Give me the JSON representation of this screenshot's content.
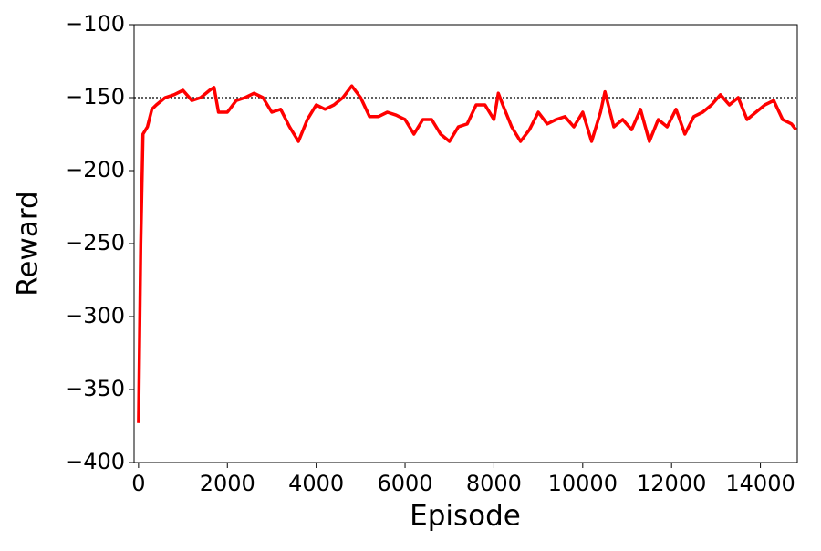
{
  "chart_data": {
    "type": "line",
    "x_label": "Episode",
    "y_label": "Reward",
    "x": [
      0,
      50,
      100,
      200,
      300,
      400,
      600,
      800,
      1000,
      1200,
      1400,
      1600,
      1700,
      1800,
      2000,
      2200,
      2400,
      2600,
      2800,
      3000,
      3200,
      3400,
      3600,
      3800,
      4000,
      4200,
      4400,
      4600,
      4800,
      5000,
      5200,
      5400,
      5600,
      5800,
      6000,
      6200,
      6400,
      6600,
      6800,
      7000,
      7200,
      7400,
      7600,
      7800,
      8000,
      8100,
      8200,
      8400,
      8600,
      8800,
      9000,
      9200,
      9400,
      9600,
      9800,
      10000,
      10200,
      10400,
      10500,
      10700,
      10900,
      11100,
      11300,
      11500,
      11700,
      11900,
      12100,
      12300,
      12500,
      12700,
      12900,
      13100,
      13300,
      13500,
      13700,
      13900,
      14100,
      14300,
      14500,
      14700,
      14800
    ],
    "series": [
      {
        "name": "reward",
        "color": "#ff0000",
        "values": [
          -373,
          -250,
          -175,
          -170,
          -158,
          -155,
          -150,
          -148,
          -145,
          -152,
          -150,
          -145,
          -143,
          -160,
          -160,
          -152,
          -150,
          -147,
          -150,
          -160,
          -158,
          -170,
          -180,
          -165,
          -155,
          -158,
          -155,
          -150,
          -142,
          -150,
          -163,
          -163,
          -160,
          -162,
          -165,
          -175,
          -165,
          -165,
          -175,
          -180,
          -170,
          -168,
          -155,
          -155,
          -165,
          -147,
          -155,
          -170,
          -180,
          -172,
          -160,
          -168,
          -165,
          -163,
          -170,
          -160,
          -180,
          -160,
          -146,
          -170,
          -165,
          -172,
          -158,
          -180,
          -165,
          -170,
          -158,
          -175,
          -163,
          -160,
          -155,
          -148,
          -155,
          -150,
          -165,
          -160,
          -155,
          -152,
          -165,
          -168,
          -172
        ]
      }
    ],
    "hline": -150,
    "xlim": [
      -100,
      14830
    ],
    "ylim": [
      -400,
      -100
    ],
    "xticks": [
      0,
      2000,
      4000,
      6000,
      8000,
      10000,
      12000,
      14000
    ],
    "yticks": [
      {
        "value": -400,
        "label": "−400"
      },
      {
        "value": -350,
        "label": "−350"
      },
      {
        "value": -300,
        "label": "−300"
      },
      {
        "value": -250,
        "label": "−250"
      },
      {
        "value": -200,
        "label": "−200"
      },
      {
        "value": -150,
        "label": "−150"
      },
      {
        "value": -100,
        "label": "−100"
      }
    ]
  }
}
